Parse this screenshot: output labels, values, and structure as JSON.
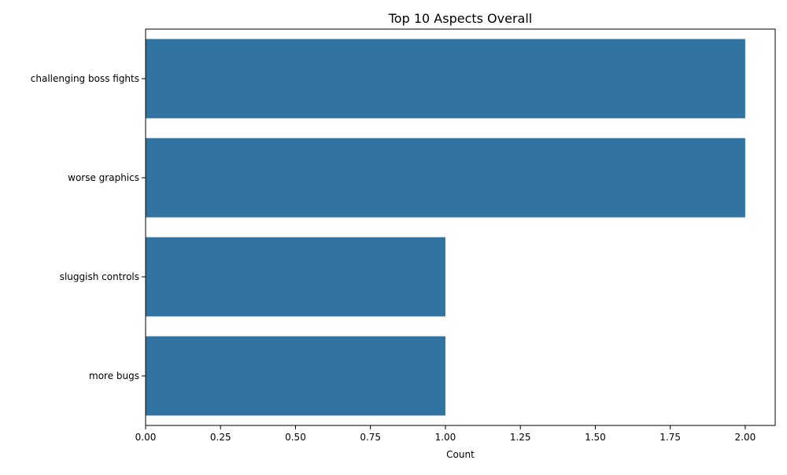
{
  "chart_data": {
    "type": "bar",
    "orientation": "horizontal",
    "title": "Top 10 Aspects Overall",
    "xlabel": "Count",
    "ylabel": "",
    "categories": [
      "challenging boss fights",
      "worse graphics",
      "sluggish controls",
      "more bugs"
    ],
    "values": [
      2,
      2,
      1,
      1
    ],
    "xlim": [
      0,
      2.1
    ],
    "xticks": [
      "0.00",
      "0.25",
      "0.50",
      "0.75",
      "1.00",
      "1.25",
      "1.50",
      "1.75",
      "2.00"
    ],
    "bar_color": "#3274a1",
    "grid": false,
    "legend": "none"
  }
}
